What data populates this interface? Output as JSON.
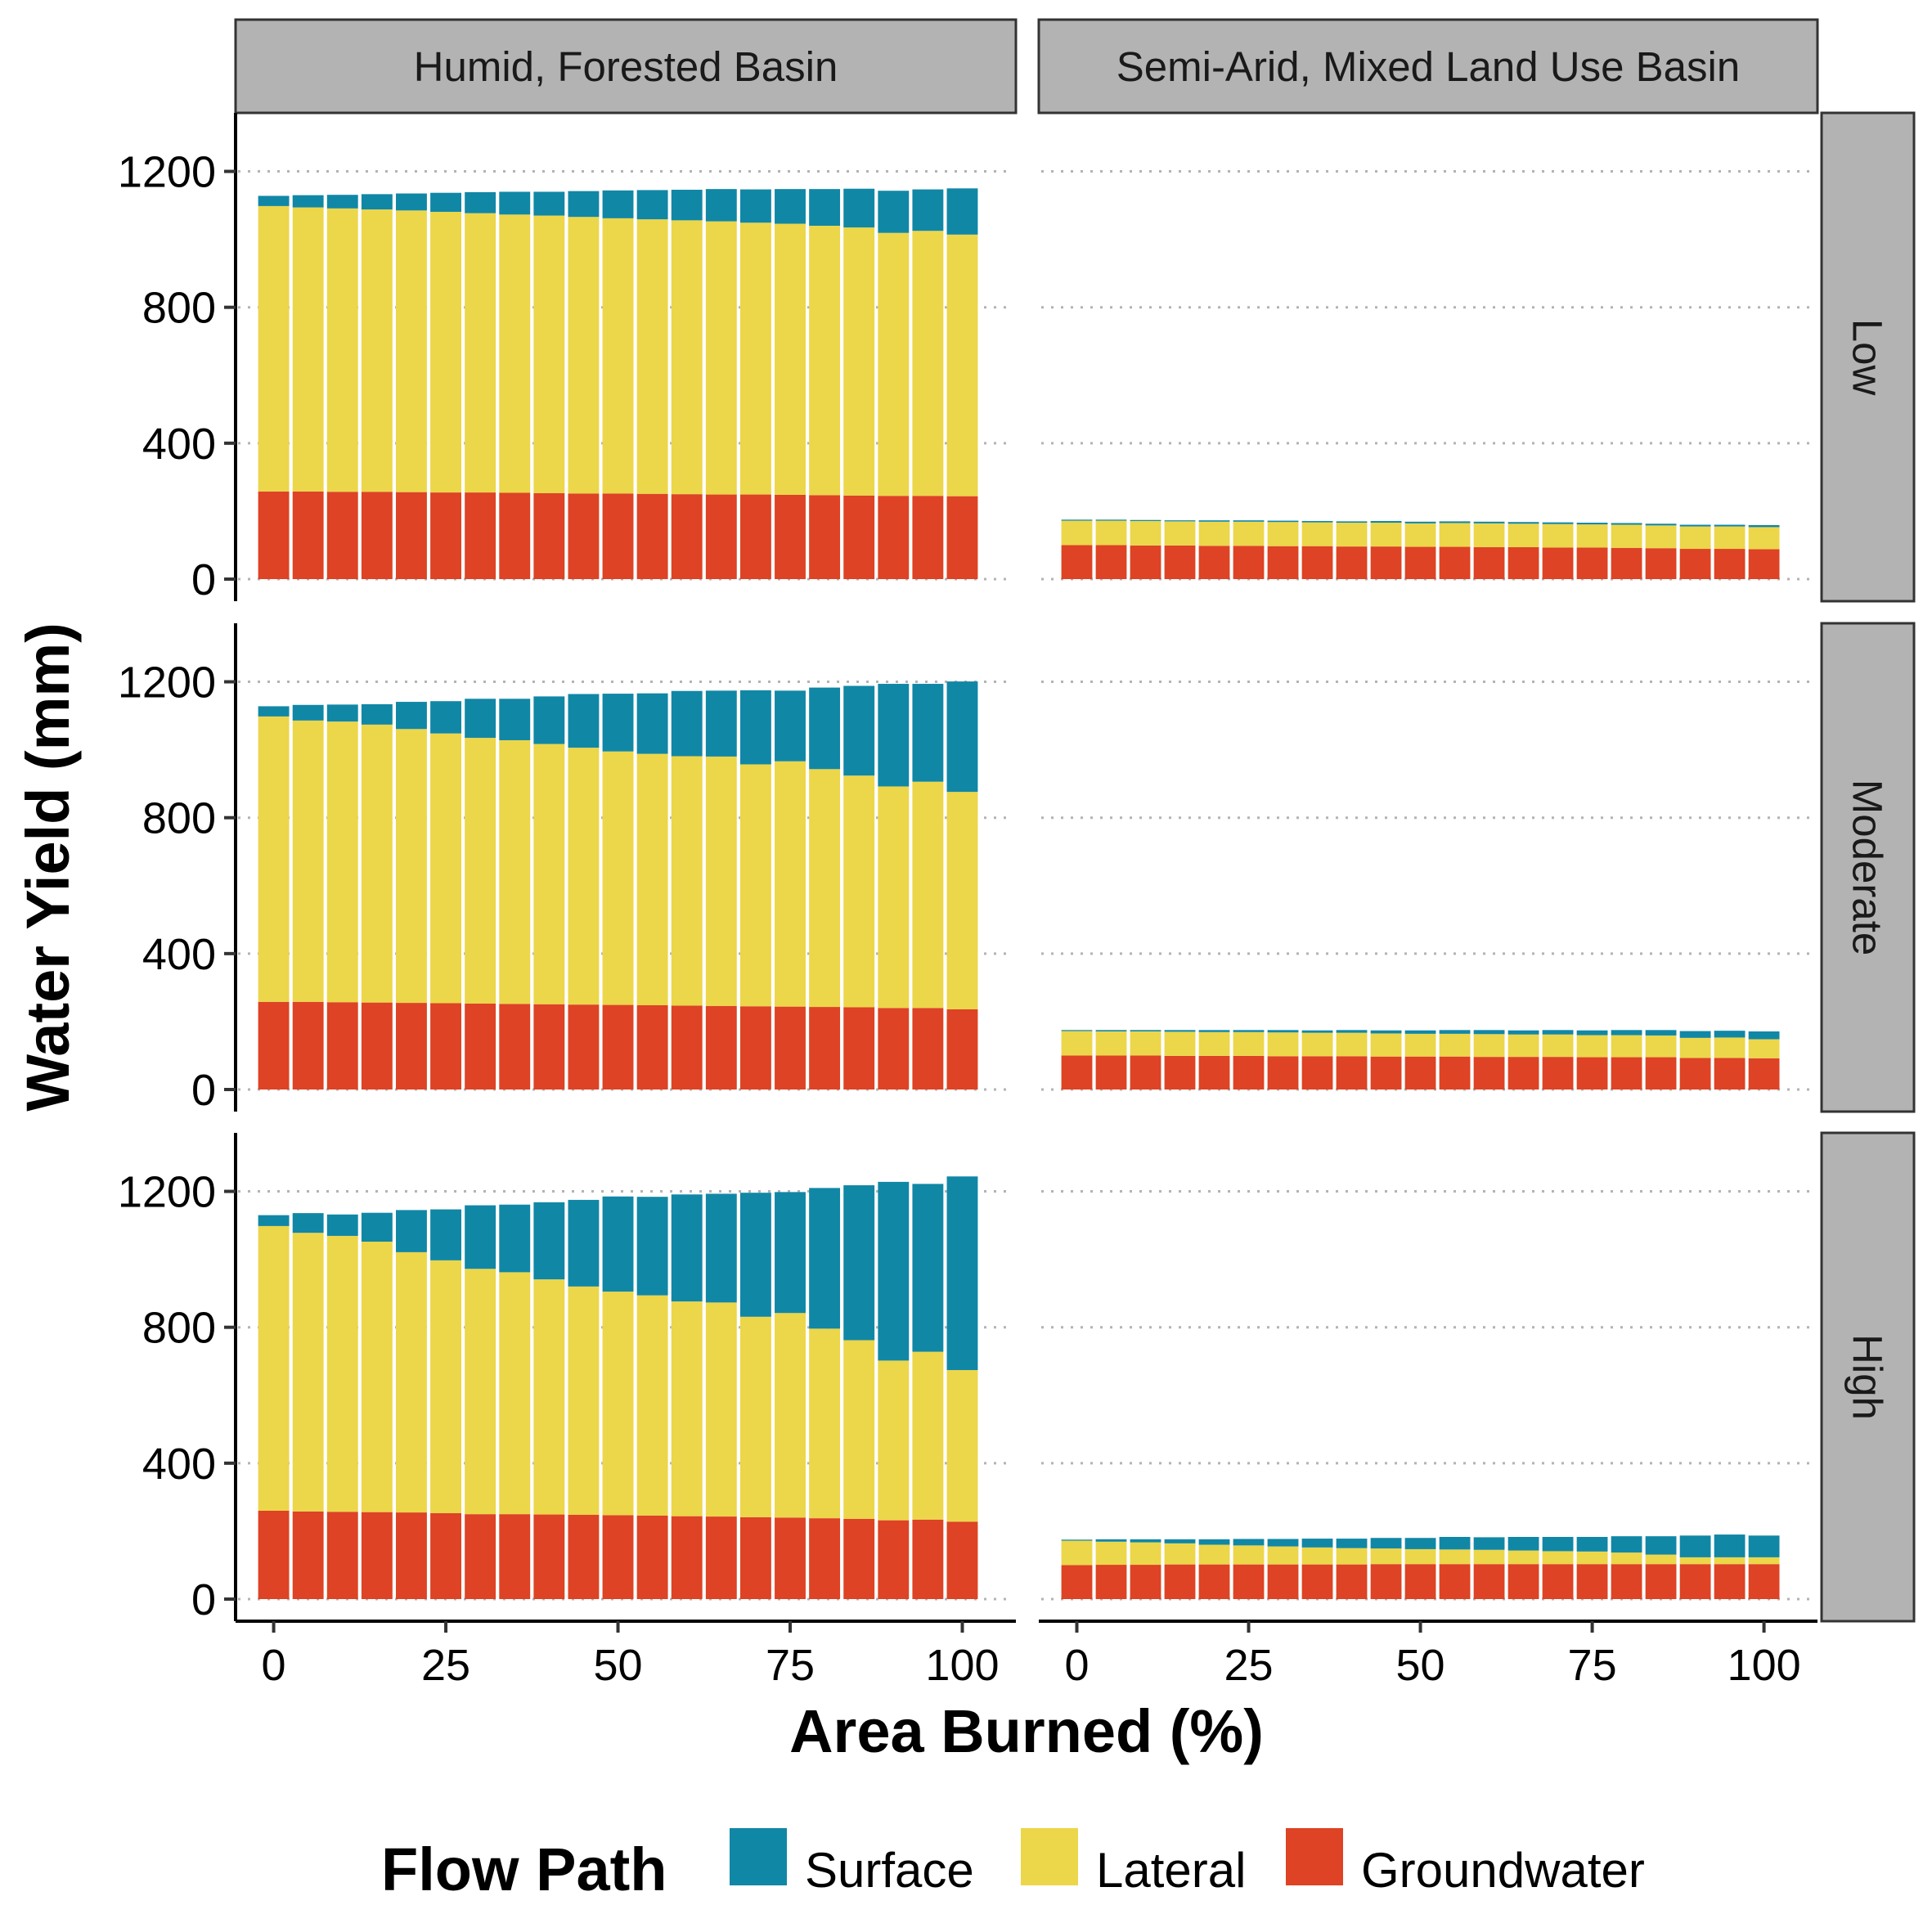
{
  "chart_data": {
    "type": "bar",
    "stacked": true,
    "ylabel": "Water Yield (mm)",
    "xlabel": "Area Burned (%)",
    "x": [
      0,
      5,
      10,
      15,
      20,
      25,
      30,
      35,
      40,
      45,
      50,
      55,
      60,
      65,
      70,
      75,
      80,
      85,
      90,
      95,
      100
    ],
    "xticks": [
      0,
      25,
      50,
      75,
      100
    ],
    "yticks": [
      0,
      400,
      800,
      1200
    ],
    "ylim": [
      0,
      1300
    ],
    "grid": "horizontal dotted",
    "legend": {
      "title": "Flow Path",
      "position": "bottom",
      "entries": [
        "Surface",
        "Lateral",
        "Groundwater"
      ]
    },
    "colors": {
      "Surface": "#1187a6",
      "Lateral": "#ecd64a",
      "Groundwater": "#dd4324"
    },
    "columns": [
      "Humid, Forested Basin",
      "Semi-Arid, Mixed Land Use Basin"
    ],
    "rows": [
      "Low",
      "Moderate",
      "High"
    ],
    "panels": [
      {
        "column": "Humid, Forested Basin",
        "row": "Low",
        "series": [
          {
            "name": "Groundwater",
            "values": [
              258,
              258,
              257,
              257,
              256,
              255,
              255,
              254,
              253,
              252,
              252,
              251,
              250,
              249,
              249,
              248,
              247,
              246,
              245,
              245,
              244
            ]
          },
          {
            "name": "Lateral",
            "values": [
              840,
              836,
              834,
              831,
              829,
              826,
              822,
              819,
              817,
              814,
              810,
              808,
              806,
              804,
              800,
              798,
              793,
              789,
              774,
              780,
              770
            ]
          },
          {
            "name": "Surface",
            "values": [
              30,
              36,
              40,
              45,
              50,
              56,
              62,
              67,
              70,
              76,
              82,
              86,
              90,
              95,
              98,
              102,
              108,
              114,
              124,
              122,
              136
            ]
          }
        ]
      },
      {
        "column": "Semi-Arid, Mixed Land Use Basin",
        "row": "Low",
        "series": [
          {
            "name": "Groundwater",
            "values": [
              100,
              100,
              99,
              99,
              98,
              98,
              97,
              97,
              96,
              96,
              95,
              95,
              94,
              94,
              93,
              93,
              92,
              91,
              89,
              89,
              88
            ]
          },
          {
            "name": "Lateral",
            "values": [
              72,
              72,
              72,
              71,
              71,
              71,
              71,
              70,
              70,
              70,
              69,
              70,
              70,
              69,
              69,
              68,
              68,
              67,
              66,
              66,
              65
            ]
          },
          {
            "name": "Surface",
            "values": [
              3,
              3,
              3,
              3,
              4,
              4,
              4,
              4,
              4,
              5,
              5,
              5,
              5,
              5,
              5,
              5,
              5,
              5,
              5,
              5,
              6
            ]
          }
        ]
      },
      {
        "column": "Humid, Forested Basin",
        "row": "Moderate",
        "series": [
          {
            "name": "Groundwater",
            "values": [
              258,
              258,
              257,
              256,
              255,
              254,
              253,
              252,
              251,
              250,
              249,
              248,
              247,
              246,
              245,
              244,
              243,
              242,
              240,
              240,
              236
            ]
          },
          {
            "name": "Lateral",
            "values": [
              840,
              828,
              826,
              818,
              806,
              794,
              782,
              776,
              766,
              756,
              746,
              740,
              734,
              734,
              712,
              722,
              700,
              682,
              652,
              666,
              640
            ]
          },
          {
            "name": "Surface",
            "values": [
              30,
              46,
              50,
              60,
              80,
              95,
              115,
              122,
              140,
              158,
              170,
              178,
              192,
              194,
              218,
              208,
              240,
              264,
              302,
              288,
              325
            ]
          }
        ]
      },
      {
        "column": "Semi-Arid, Mixed Land Use Basin",
        "row": "Moderate",
        "series": [
          {
            "name": "Groundwater",
            "values": [
              100,
              100,
              100,
              99,
              99,
              99,
              98,
              98,
              98,
              97,
              97,
              97,
              96,
              96,
              96,
              95,
              95,
              95,
              93,
              93,
              92
            ]
          },
          {
            "name": "Lateral",
            "values": [
              72,
              71,
              71,
              71,
              70,
              70,
              70,
              69,
              69,
              68,
              67,
              67,
              67,
              66,
              66,
              65,
              65,
              64,
              59,
              60,
              56
            ]
          },
          {
            "name": "Surface",
            "values": [
              3,
              4,
              4,
              5,
              6,
              6,
              7,
              7,
              8,
              9,
              10,
              11,
              12,
              12,
              13,
              14,
              15,
              16,
              20,
              20,
              23
            ]
          }
        ]
      },
      {
        "column": "Humid, Forested Basin",
        "row": "High",
        "series": [
          {
            "name": "Groundwater",
            "values": [
              260,
              258,
              257,
              256,
              255,
              253,
              250,
              250,
              249,
              248,
              247,
              246,
              244,
              243,
              241,
              240,
              238,
              236,
              232,
              234,
              228
            ]
          },
          {
            "name": "Lateral",
            "values": [
              838,
              820,
              812,
              796,
              766,
              744,
              722,
              712,
              692,
              672,
              658,
              648,
              632,
              630,
              590,
              602,
              558,
              526,
              470,
              494,
              446
            ]
          },
          {
            "name": "Surface",
            "values": [
              32,
              58,
              63,
              85,
              124,
              150,
              187,
              199,
              227,
              255,
              280,
              290,
              315,
              320,
              365,
              356,
              414,
              456,
              526,
              494,
              570
            ]
          }
        ]
      },
      {
        "column": "Semi-Arid, Mixed Land Use Basin",
        "row": "High",
        "series": [
          {
            "name": "Groundwater",
            "values": [
              100,
              101,
              101,
              102,
              102,
              102,
              102,
              102,
              102,
              103,
              103,
              103,
              103,
              103,
              103,
              103,
              103,
              103,
              103,
              103,
              103
            ]
          },
          {
            "name": "Lateral",
            "values": [
              72,
              68,
              66,
              62,
              58,
              56,
              53,
              50,
              48,
              46,
              44,
              43,
              42,
              40,
              38,
              37,
              34,
              28,
              20,
              20,
              20
            ]
          },
          {
            "name": "Surface",
            "values": [
              3,
              7,
              9,
              12,
              16,
              19,
              22,
              26,
              28,
              31,
              33,
              37,
              37,
              40,
              42,
              43,
              48,
              54,
              64,
              67,
              64
            ]
          }
        ]
      }
    ]
  }
}
